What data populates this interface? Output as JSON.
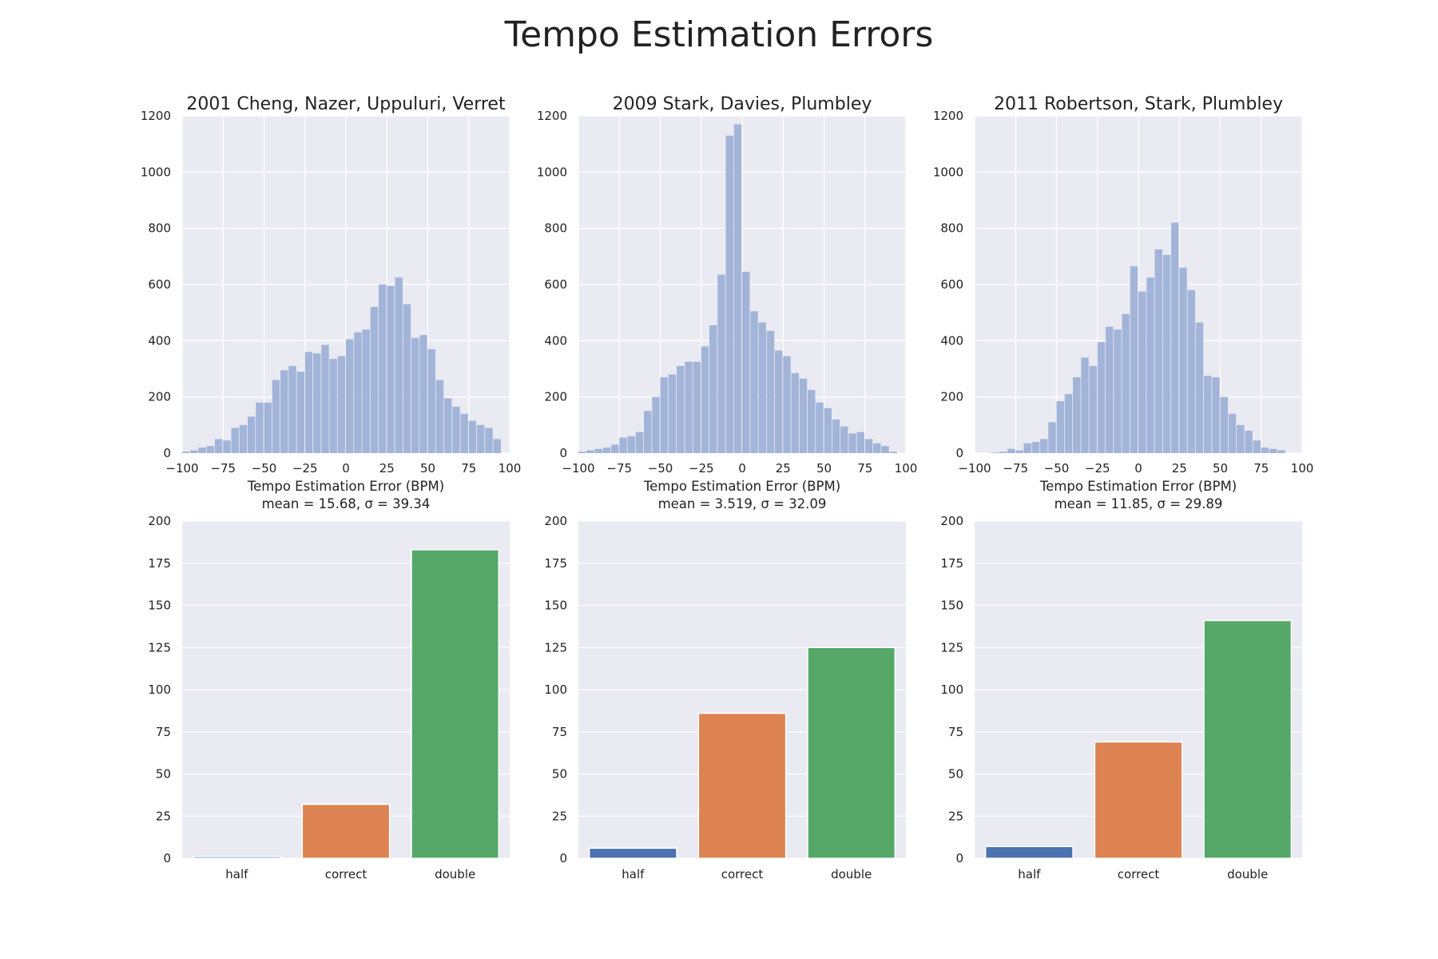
{
  "figure": {
    "title": "Tempo Estimation Errors"
  },
  "colors": {
    "panel_background": "#eaeaf2",
    "grid": "#ffffff",
    "histogram": "#a3b4d9",
    "half": "#4c72b0",
    "correct": "#dd8452",
    "double": "#55a868"
  },
  "chart_data": [
    {
      "type": "bar",
      "kind": "histogram",
      "title": "2001 Cheng, Nazer, Uppuluri, Verret",
      "xlabel": "Tempo Estimation Error (BPM)",
      "stats_label": "mean = 15.68,   σ = 39.34",
      "xlim": [
        -100,
        100
      ],
      "ylim": [
        0,
        1200
      ],
      "xticks": [
        "−100",
        "−75",
        "−50",
        "−25",
        "0",
        "25",
        "50",
        "75",
        "100"
      ],
      "yticks": [
        "0",
        "200",
        "400",
        "600",
        "800",
        "1000",
        "1200"
      ],
      "bin_start": -100,
      "bin_width": 5,
      "values": [
        5,
        10,
        20,
        25,
        50,
        45,
        90,
        100,
        130,
        180,
        180,
        260,
        295,
        310,
        290,
        360,
        355,
        385,
        335,
        345,
        405,
        430,
        440,
        520,
        600,
        595,
        625,
        530,
        410,
        420,
        370,
        260,
        195,
        165,
        140,
        115,
        100,
        90,
        50,
        0
      ]
    },
    {
      "type": "bar",
      "kind": "histogram",
      "title": "2009 Stark, Davies, Plumbley",
      "xlabel": "Tempo Estimation Error (BPM)",
      "stats_label": "mean = 3.519,   σ = 32.09",
      "xlim": [
        -100,
        100
      ],
      "ylim": [
        0,
        1200
      ],
      "xticks": [
        "−100",
        "−75",
        "−50",
        "−25",
        "0",
        "25",
        "50",
        "75",
        "100"
      ],
      "yticks": [
        "0",
        "200",
        "400",
        "600",
        "800",
        "1000",
        "1200"
      ],
      "bin_start": -100,
      "bin_width": 5,
      "values": [
        5,
        10,
        15,
        20,
        30,
        55,
        60,
        75,
        150,
        200,
        270,
        280,
        310,
        325,
        325,
        380,
        455,
        635,
        1130,
        1170,
        645,
        505,
        465,
        435,
        365,
        345,
        285,
        265,
        225,
        180,
        160,
        120,
        95,
        70,
        75,
        50,
        35,
        25,
        5,
        0
      ]
    },
    {
      "type": "bar",
      "kind": "histogram",
      "title": "2011 Robertson, Stark, Plumbley",
      "xlabel": "Tempo Estimation Error (BPM)",
      "stats_label": "mean = 11.85,   σ = 29.89",
      "xlim": [
        -100,
        100
      ],
      "ylim": [
        0,
        1200
      ],
      "xticks": [
        "−100",
        "−75",
        "−50",
        "−25",
        "0",
        "25",
        "50",
        "75",
        "100"
      ],
      "yticks": [
        "0",
        "200",
        "400",
        "600",
        "800",
        "1000",
        "1200"
      ],
      "bin_start": -100,
      "bin_width": 5,
      "values": [
        0,
        0,
        2,
        5,
        15,
        10,
        35,
        40,
        50,
        110,
        185,
        210,
        270,
        340,
        310,
        395,
        450,
        440,
        495,
        665,
        575,
        625,
        725,
        705,
        820,
        660,
        580,
        465,
        275,
        270,
        200,
        140,
        100,
        80,
        45,
        20,
        15,
        10,
        0,
        0
      ]
    },
    {
      "type": "bar",
      "categories": [
        "half",
        "correct",
        "double"
      ],
      "values": [
        1,
        32,
        183
      ],
      "ylim": [
        0,
        200
      ],
      "yticks": [
        "0",
        "25",
        "50",
        "75",
        "100",
        "125",
        "150",
        "175",
        "200"
      ]
    },
    {
      "type": "bar",
      "categories": [
        "half",
        "correct",
        "double"
      ],
      "values": [
        6,
        86,
        125
      ],
      "ylim": [
        0,
        200
      ],
      "yticks": [
        "0",
        "25",
        "50",
        "75",
        "100",
        "125",
        "150",
        "175",
        "200"
      ]
    },
    {
      "type": "bar",
      "categories": [
        "half",
        "correct",
        "double"
      ],
      "values": [
        7,
        69,
        141
      ],
      "ylim": [
        0,
        200
      ],
      "yticks": [
        "0",
        "25",
        "50",
        "75",
        "100",
        "125",
        "150",
        "175",
        "200"
      ]
    }
  ]
}
